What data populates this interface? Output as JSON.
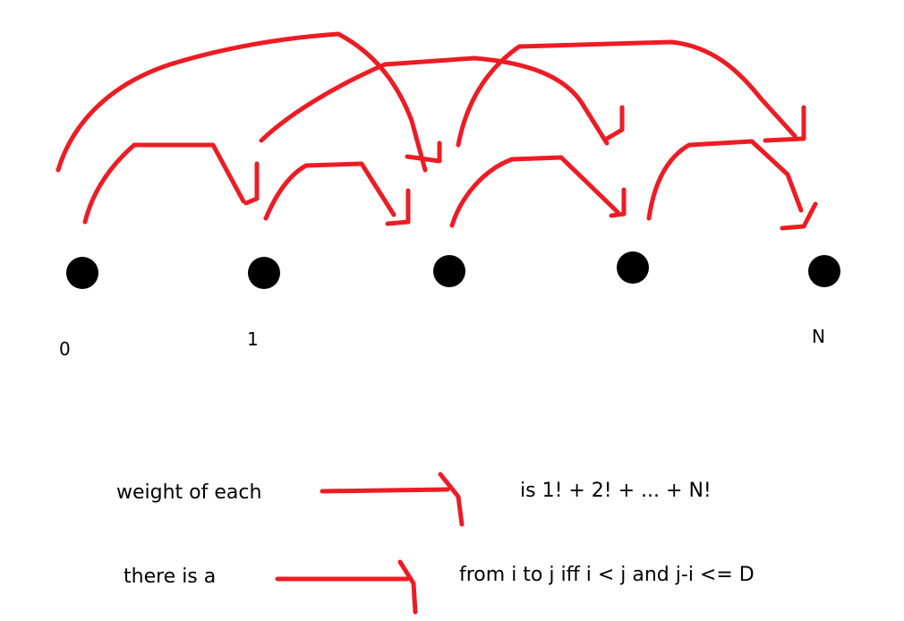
{
  "colors": {
    "arrow": "#ed1c24",
    "node": "#000000",
    "text": "#000000",
    "background": "#ffffff"
  },
  "nodes": [
    {
      "id": "n0",
      "label": "0"
    },
    {
      "id": "n1",
      "label": "1"
    },
    {
      "id": "n2",
      "label": ""
    },
    {
      "id": "n3",
      "label": ""
    },
    {
      "id": "n4",
      "label": "N"
    }
  ],
  "edges": [
    {
      "from": "n0",
      "to": "n1",
      "kind": "short"
    },
    {
      "from": "n1",
      "to": "n2",
      "kind": "short"
    },
    {
      "from": "n2",
      "to": "n3",
      "kind": "short"
    },
    {
      "from": "n3",
      "to": "n4",
      "kind": "short"
    },
    {
      "from": "n0",
      "to": "n2",
      "kind": "long"
    },
    {
      "from": "n1",
      "to": "n3",
      "kind": "long"
    },
    {
      "from": "n2",
      "to": "n4",
      "kind": "long"
    }
  ],
  "legend": [
    {
      "left": "weight of each",
      "right": "is 1! + 2! + ... + N!"
    },
    {
      "left": "there is a",
      "right": "from i to j iff i < j and j-i <= D"
    }
  ]
}
